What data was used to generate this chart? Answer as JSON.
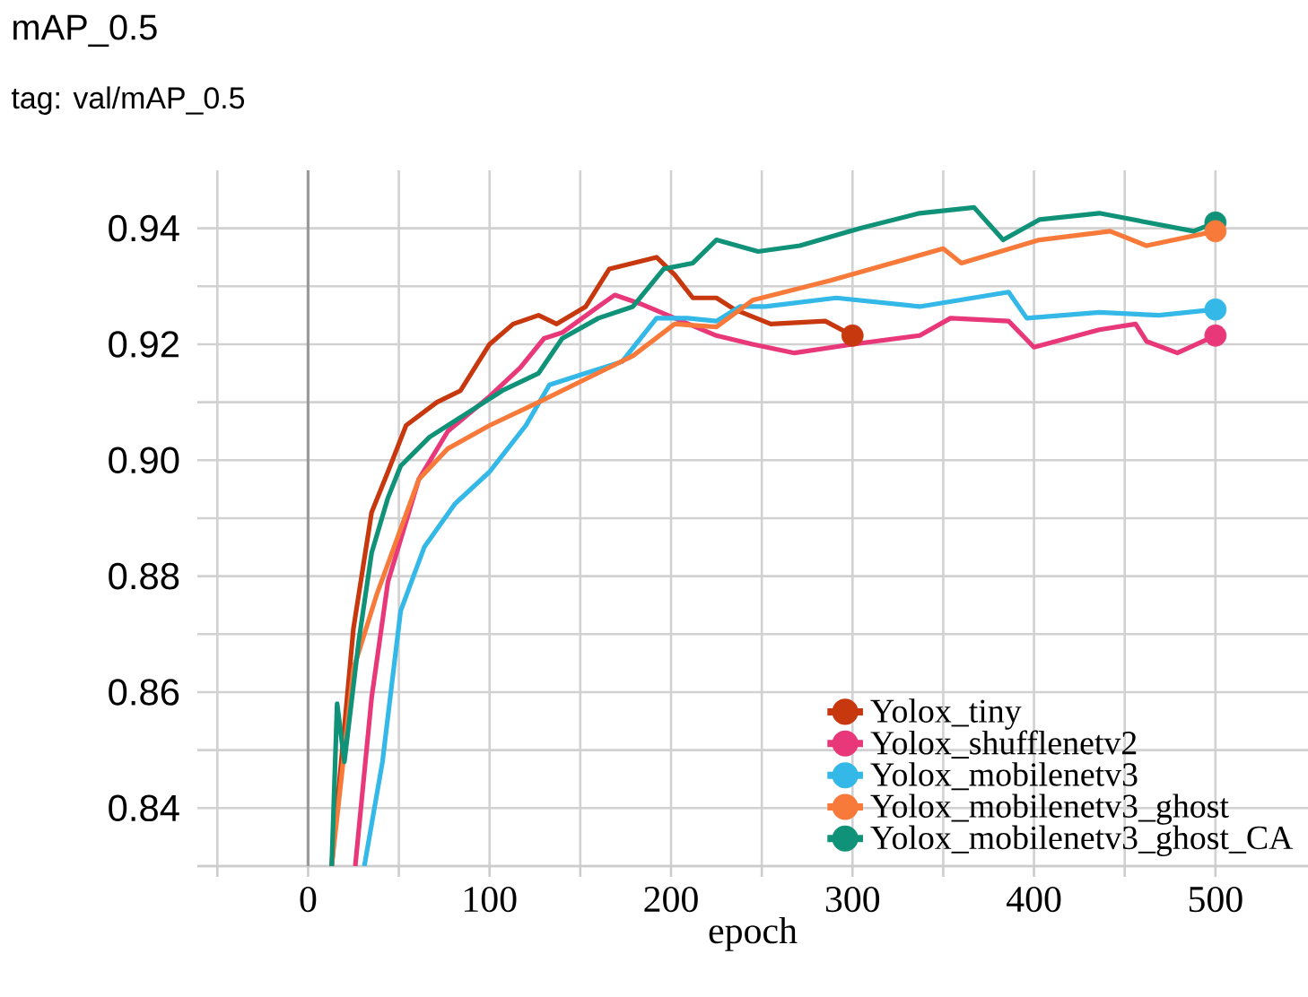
{
  "chart_data": {
    "type": "line",
    "title": "mAP_0.5",
    "subtitle": "tag: val/mAP_0.5",
    "xlabel": "epoch",
    "xlim": [
      -61,
      551
    ],
    "ylim": [
      0.83,
      0.95
    ],
    "xticks": [
      {
        "value": -50,
        "label": null
      },
      0,
      {
        "value": 50,
        "label": null
      },
      100,
      {
        "value": 150,
        "label": null
      },
      200,
      {
        "value": 250,
        "label": null
      },
      300,
      {
        "value": 350,
        "label": null
      },
      400,
      {
        "value": 450,
        "label": null
      },
      500
    ],
    "yticks": [
      {
        "value": 0.83,
        "label": null
      },
      {
        "value": 0.84,
        "label": "0.84"
      },
      {
        "value": 0.85,
        "label": null
      },
      {
        "value": 0.86,
        "label": "0.86"
      },
      {
        "value": 0.87,
        "label": null
      },
      {
        "value": 0.88,
        "label": "0.88"
      },
      {
        "value": 0.89,
        "label": null
      },
      {
        "value": 0.9,
        "label": "0.90"
      },
      {
        "value": 0.91,
        "label": null
      },
      {
        "value": 0.92,
        "label": "0.92"
      },
      {
        "value": 0.93,
        "label": null
      },
      {
        "value": 0.94,
        "label": "0.94"
      }
    ],
    "grid": true,
    "legend": "bottom right",
    "line_style": "solid",
    "ref_lines": [
      {
        "axis": "x",
        "value": 0,
        "color": "#9a9a9a"
      }
    ],
    "series": [
      {
        "name": "Yolox_tiny",
        "color": "#c8380f",
        "x": [
          13,
          25,
          35,
          44,
          54,
          71,
          84,
          100,
          113,
          127,
          137,
          153,
          166,
          192,
          202,
          212,
          225,
          235,
          255,
          285,
          300
        ],
        "values": [
          0.83,
          0.871,
          0.891,
          0.898,
          0.906,
          0.91,
          0.912,
          0.92,
          0.9235,
          0.925,
          0.9235,
          0.9265,
          0.933,
          0.935,
          0.932,
          0.928,
          0.928,
          0.926,
          0.9235,
          0.924,
          0.9215
        ]
      },
      {
        "name": "Yolox_shufflenetv2",
        "color": "#e8387a",
        "x": [
          26,
          35,
          44,
          61,
          77,
          100,
          117,
          130,
          140,
          160,
          169,
          183,
          202,
          225,
          245,
          268,
          300,
          337,
          354,
          386,
          400,
          436,
          456,
          462,
          479,
          500
        ],
        "values": [
          0.83,
          0.859,
          0.879,
          0.8967,
          0.905,
          0.911,
          0.916,
          0.921,
          0.922,
          0.9265,
          0.9285,
          0.927,
          0.9245,
          0.9215,
          0.92,
          0.9185,
          0.92,
          0.9215,
          0.9245,
          0.924,
          0.9195,
          0.9225,
          0.9235,
          0.9205,
          0.9185,
          0.9215
        ]
      },
      {
        "name": "Yolox_mobilenetv3",
        "color": "#33b8e8",
        "x": [
          31,
          41,
          51,
          64,
          81,
          100,
          120,
          133,
          153,
          173,
          192,
          209,
          225,
          238,
          252,
          291,
          337,
          386,
          396,
          436,
          469,
          500
        ],
        "values": [
          0.83,
          0.848,
          0.874,
          0.885,
          0.8925,
          0.898,
          0.906,
          0.913,
          0.915,
          0.917,
          0.9245,
          0.9245,
          0.924,
          0.9265,
          0.9265,
          0.928,
          0.9265,
          0.929,
          0.9245,
          0.9255,
          0.925,
          0.926
        ]
      },
      {
        "name": "Yolox_mobilenetv3_ghost",
        "color": "#f77a3a",
        "x": [
          13,
          25,
          38,
          61,
          77,
          100,
          127,
          153,
          179,
          202,
          225,
          245,
          288,
          350,
          360,
          403,
          442,
          462,
          500
        ],
        "values": [
          0.83,
          0.864,
          0.877,
          0.8967,
          0.902,
          0.906,
          0.91,
          0.914,
          0.918,
          0.9235,
          0.923,
          0.9276,
          0.931,
          0.9365,
          0.934,
          0.938,
          0.9395,
          0.937,
          0.9395
        ]
      },
      {
        "name": "Yolox_mobilenetv3_ghost_CA",
        "color": "#0f9278",
        "x": [
          13,
          16,
          20,
          28,
          35,
          44,
          51,
          67,
          87,
          107,
          127,
          140,
          160,
          179,
          196,
          212,
          225,
          248,
          271,
          304,
          337,
          367,
          383,
          403,
          436,
          488,
          500
        ],
        "values": [
          0.83,
          0.858,
          0.848,
          0.869,
          0.884,
          0.8935,
          0.899,
          0.904,
          0.908,
          0.912,
          0.915,
          0.921,
          0.9245,
          0.9265,
          0.933,
          0.934,
          0.938,
          0.936,
          0.937,
          0.94,
          0.9426,
          0.9436,
          0.938,
          0.9415,
          0.9426,
          0.9395,
          0.941
        ]
      }
    ]
  }
}
